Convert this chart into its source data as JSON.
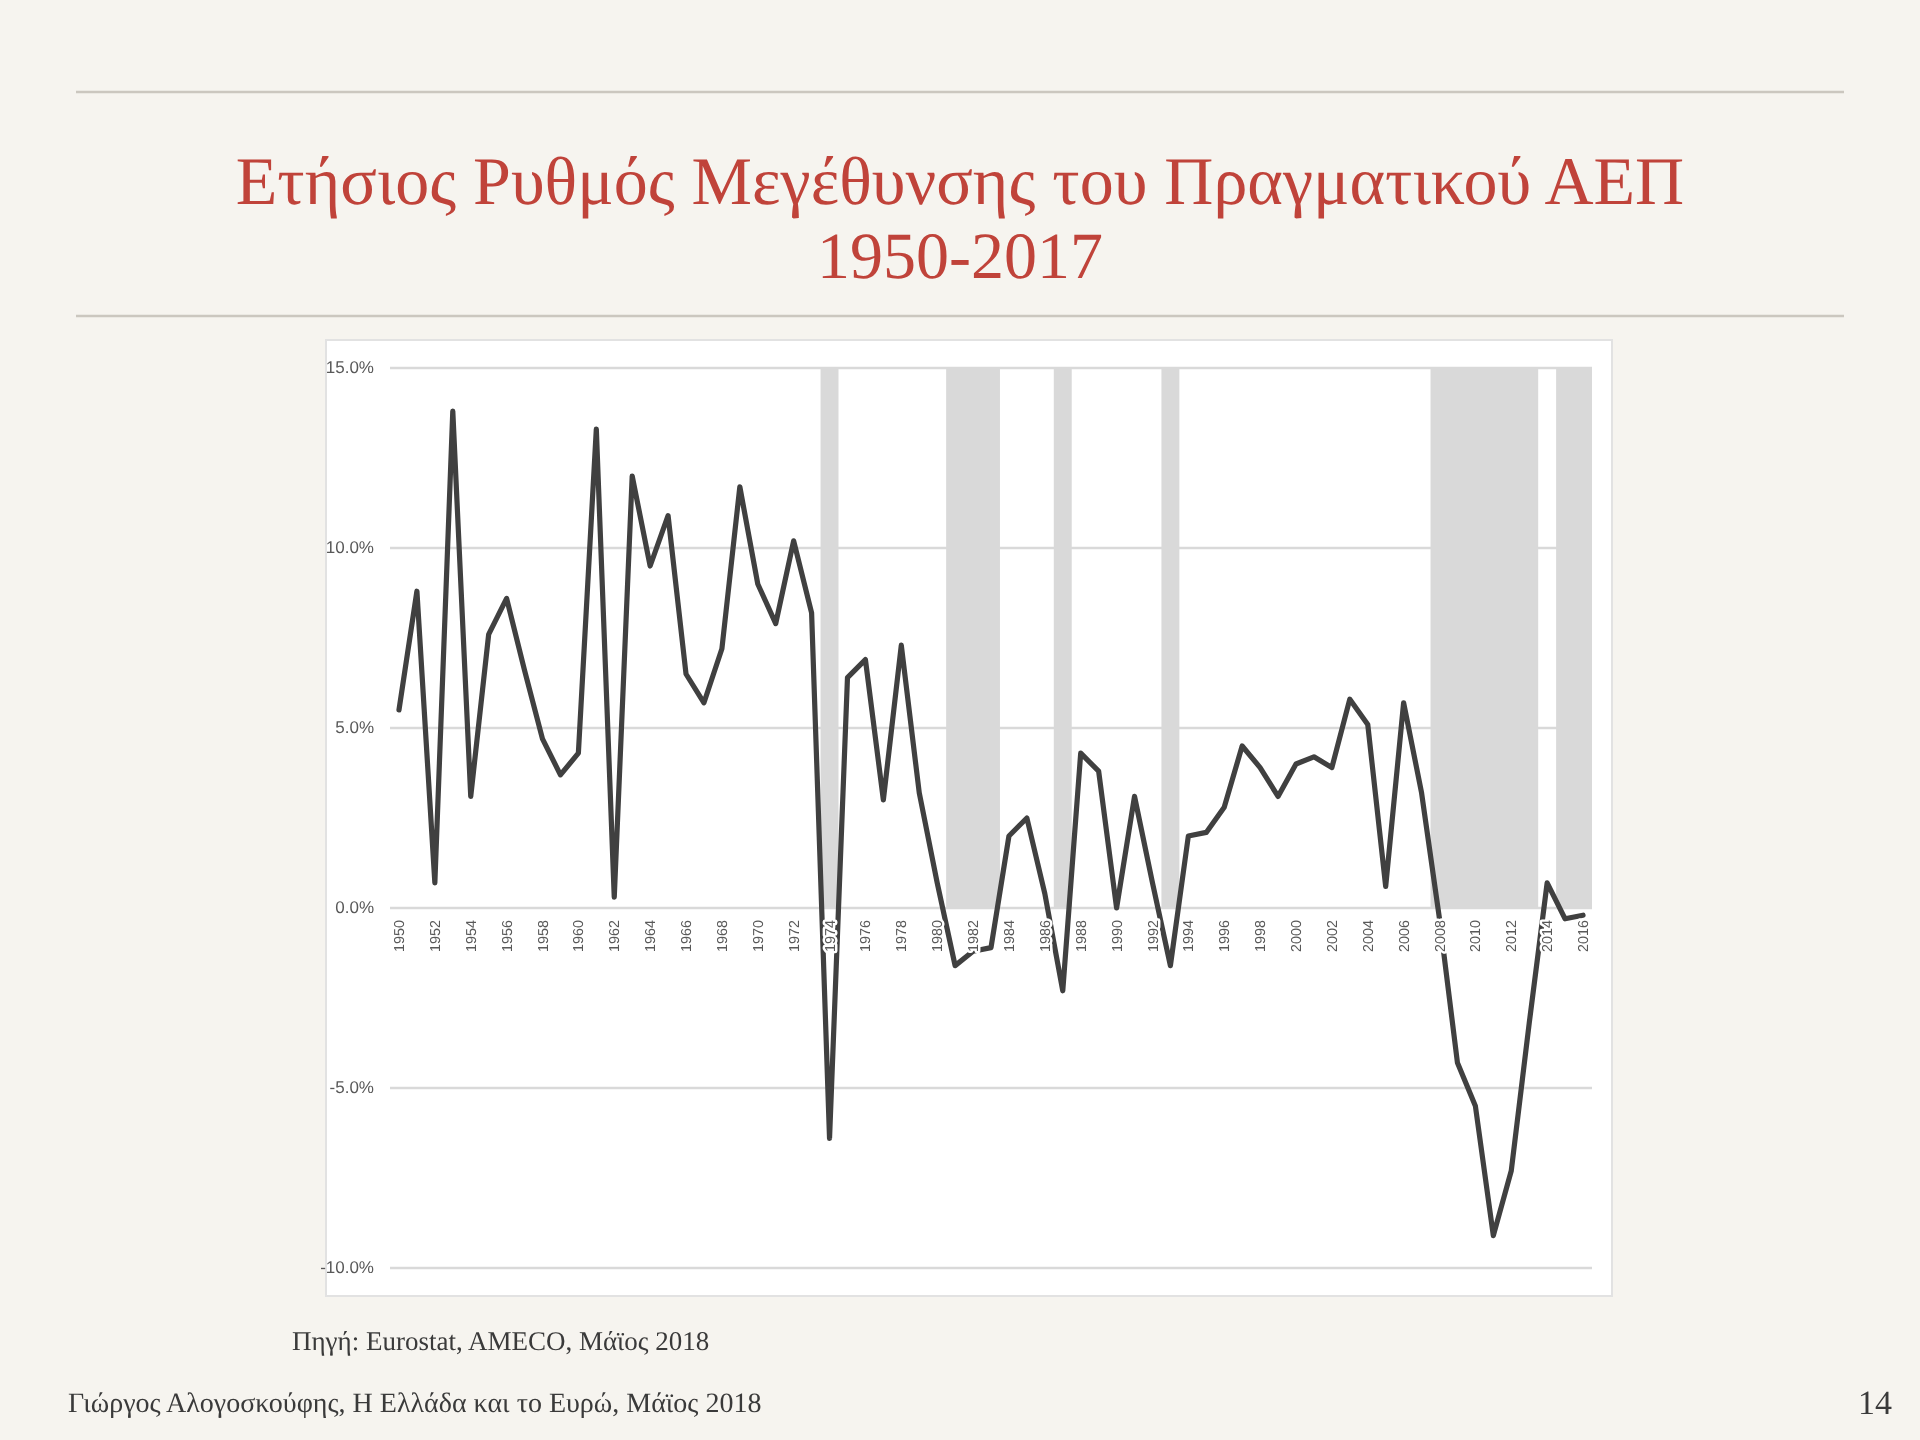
{
  "chart_data": {
    "type": "line",
    "title": "Ετήσιος Ρυθμός Μεγέθυνσης του Πραγματικού ΑΕΠ",
    "subtitle": "1950-2017",
    "x": [
      1950,
      1951,
      1952,
      1953,
      1954,
      1955,
      1956,
      1957,
      1958,
      1959,
      1960,
      1961,
      1962,
      1963,
      1964,
      1965,
      1966,
      1967,
      1968,
      1969,
      1970,
      1971,
      1972,
      1973,
      1974,
      1975,
      1976,
      1977,
      1978,
      1979,
      1980,
      1981,
      1982,
      1983,
      1984,
      1985,
      1986,
      1987,
      1988,
      1989,
      1990,
      1991,
      1992,
      1993,
      1994,
      1995,
      1996,
      1997,
      1998,
      1999,
      2000,
      2001,
      2002,
      2003,
      2004,
      2005,
      2006,
      2007,
      2008,
      2009,
      2010,
      2011,
      2012,
      2013,
      2014,
      2015,
      2016
    ],
    "values": [
      5.5,
      8.8,
      0.7,
      13.8,
      3.1,
      7.6,
      8.6,
      6.6,
      4.7,
      3.7,
      4.3,
      13.3,
      0.3,
      12.0,
      9.5,
      10.9,
      6.5,
      5.7,
      7.2,
      11.7,
      9.0,
      7.9,
      10.2,
      8.2,
      -6.4,
      6.4,
      6.9,
      3.0,
      7.3,
      3.2,
      0.7,
      -1.6,
      -1.2,
      -1.1,
      2.0,
      2.5,
      0.4,
      -2.3,
      4.3,
      3.8,
      0.0,
      3.1,
      0.7,
      -1.6,
      2.0,
      2.1,
      2.8,
      4.5,
      3.9,
      3.1,
      4.0,
      4.2,
      3.9,
      5.8,
      5.1,
      0.6,
      5.7,
      3.2,
      -0.3,
      -4.3,
      -5.5,
      -9.1,
      -7.3,
      -3.2,
      0.7,
      -0.3,
      -0.2
    ],
    "color": "#404040",
    "xlim": [
      1949.5,
      2016.5
    ],
    "xticks": [
      1950,
      1952,
      1954,
      1956,
      1958,
      1960,
      1962,
      1964,
      1966,
      1968,
      1970,
      1972,
      1974,
      1976,
      1978,
      1980,
      1982,
      1984,
      1986,
      1988,
      1990,
      1992,
      1994,
      1996,
      1998,
      2000,
      2002,
      2004,
      2006,
      2008,
      2010,
      2012,
      2014,
      2016
    ],
    "ylim": [
      -10,
      15
    ],
    "yticks": [
      {
        "value": -10,
        "label": "-10.0%"
      },
      {
        "value": -5,
        "label": "-5.0%"
      },
      {
        "value": 0,
        "label": "0.0%"
      },
      {
        "value": 5,
        "label": "5.0%"
      },
      {
        "value": 10,
        "label": "10.0%"
      },
      {
        "value": 15,
        "label": "15.0%"
      }
    ],
    "grid": "y",
    "bands": [
      {
        "axis": "x",
        "from": 1973.5,
        "to": 1974.5,
        "color": "#d9d9d9"
      },
      {
        "axis": "x",
        "from": 1980.5,
        "to": 1983.5,
        "color": "#d9d9d9"
      },
      {
        "axis": "x",
        "from": 1986.5,
        "to": 1987.5,
        "color": "#d9d9d9"
      },
      {
        "axis": "x",
        "from": 1992.5,
        "to": 1993.5,
        "color": "#d9d9d9"
      },
      {
        "axis": "x",
        "from": 2007.5,
        "to": 2013.5,
        "color": "#d9d9d9"
      },
      {
        "axis": "x",
        "from": 2014.5,
        "to": 2016.5,
        "color": "#d9d9d9"
      }
    ],
    "annotations": [
      "Πηγή: Eurostat, AMECO, Μάϊος 2018",
      "Γιώργος Αλογοσκούφης, Η Ελλάδα και το Ευρώ, Μάϊος 2018",
      "14"
    ]
  }
}
